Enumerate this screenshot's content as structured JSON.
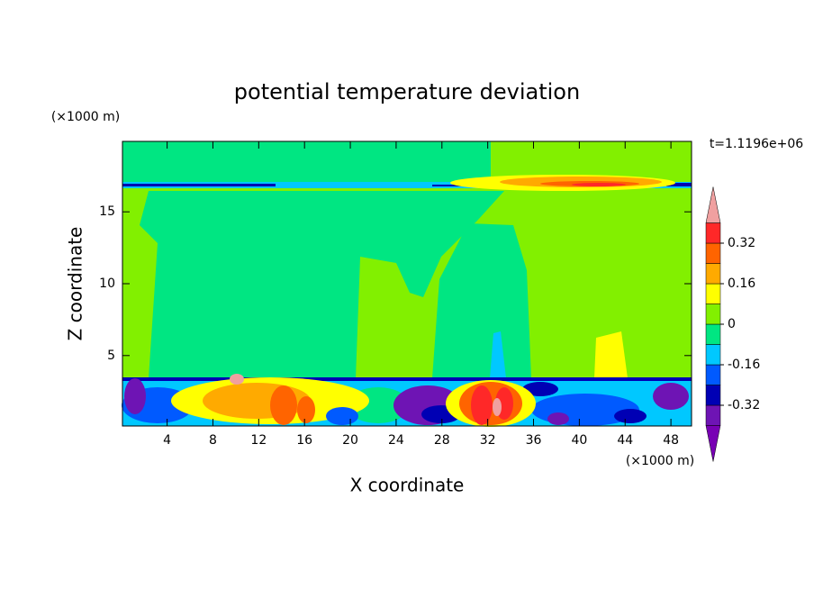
{
  "chart_data": {
    "type": "contour",
    "title": "potential temperature deviation",
    "x_label": "X coordinate",
    "y_label": "Z coordinate",
    "x_unit": "(×1000 m)",
    "y_unit": "(×1000 m)",
    "time_label": "t=1.1196e+06",
    "xlim": [
      0.1,
      49.8
    ],
    "xticks": [
      4,
      8,
      12,
      16,
      20,
      24,
      28,
      32,
      36,
      40,
      44,
      48
    ],
    "ylim": [
      0.1,
      19.9
    ],
    "yticks": [
      5,
      10,
      15
    ],
    "levels": [
      -0.4,
      -0.32,
      -0.24,
      -0.16,
      -0.08,
      0,
      0.08,
      0.16,
      0.24,
      0.32,
      0.4
    ],
    "colors": [
      "#7800b4",
      "#6e14b4",
      "#0000b4",
      "#005aff",
      "#00c8ff",
      "#00e682",
      "#82f000",
      "#ffff00",
      "#ffaa00",
      "#ff6400",
      "#ff2828",
      "#f0a0a0"
    ],
    "colorbar_ticks": [
      -0.32,
      -0.16,
      0,
      0.16,
      0.32
    ]
  }
}
